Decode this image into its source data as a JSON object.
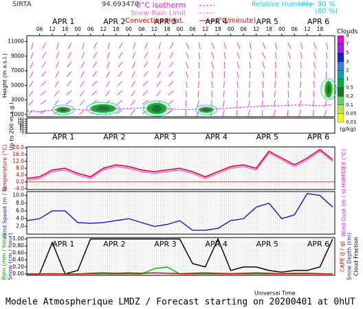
{
  "header": {
    "site": "SIRTA",
    "code": "94.693470",
    "legend": [
      {
        "text": "Snow-Rain Limit",
        "color": "#ff66cc"
      },
      {
        "text": "Convective Heat.",
        "color": "#e00000"
      },
      {
        "text": "(°C/minute)",
        "color": "#e00000"
      },
      {
        "text": "Relative Humidity",
        "color": "#00d8e8"
      },
      {
        "text": "90 %",
        "color": "#00d8e8"
      },
      {
        "text": "(60 %)",
        "color": "#00d8e8"
      }
    ]
  },
  "chart_data": [
    {
      "type": "line",
      "ylabel": "Height (m a.s.l.)",
      "sub_ylabel": "Up to 200 m a.g.l.",
      "xlim": [
        0,
        145
      ],
      "ylim": [
        700,
        11800
      ],
      "yticks": [
        1000,
        3000,
        5000,
        7000,
        9000,
        11000
      ],
      "sub_ylim": [
        0,
        150
      ],
      "sub_yticks": [
        0,
        20,
        40,
        60,
        80,
        100,
        120,
        140
      ],
      "xticks": [
        {
          "value": 12,
          "label": "APR 1"
        },
        {
          "value": 36,
          "label": "APR 2"
        },
        {
          "value": 60,
          "label": "APR 3"
        },
        {
          "value": 84,
          "label": "APR 4"
        },
        {
          "value": 108,
          "label": "APR 5"
        },
        {
          "value": 132,
          "label": "APR 6"
        }
      ],
      "hour_ticks": [
        {
          "value": 6,
          "label": "06"
        },
        {
          "value": 12,
          "label": "12"
        },
        {
          "value": 18,
          "label": "18"
        },
        {
          "value": 24,
          "label": "00"
        },
        {
          "value": 30,
          "label": "06"
        },
        {
          "value": 36,
          "label": "12"
        },
        {
          "value": 42,
          "label": "18"
        },
        {
          "value": 48,
          "label": "00"
        },
        {
          "value": 54,
          "label": "06"
        },
        {
          "value": 60,
          "label": "12"
        },
        {
          "value": 66,
          "label": "18"
        },
        {
          "value": 72,
          "label": "00"
        },
        {
          "value": 78,
          "label": "06"
        },
        {
          "value": 84,
          "label": "12"
        },
        {
          "value": 90,
          "label": "18"
        },
        {
          "value": 96,
          "label": "00"
        },
        {
          "value": 102,
          "label": "06"
        },
        {
          "value": 108,
          "label": "12"
        },
        {
          "value": 114,
          "label": "18"
        },
        {
          "value": 120,
          "label": "00"
        },
        {
          "value": 126,
          "label": "06"
        },
        {
          "value": 132,
          "label": "12"
        },
        {
          "value": 138,
          "label": "18"
        }
      ],
      "x": [
        0,
        6,
        12,
        18,
        24,
        30,
        36,
        42,
        48,
        54,
        60,
        66,
        72,
        78,
        84,
        90,
        96,
        102,
        108,
        114,
        120,
        126,
        132,
        138,
        144
      ],
      "series": [
        {
          "name": "0°C isotherm",
          "color": "#ff00ff",
          "values": [
            1500,
            1400,
            1600,
            1800,
            1700,
            1600,
            1700,
            1800,
            1800,
            1900,
            1900,
            1800,
            1700,
            1700,
            1800,
            1800,
            1900,
            2000,
            2100,
            2200,
            2200,
            2300,
            2300,
            2200,
            2400
          ]
        }
      ],
      "colorbar": {
        "title": "Clouds",
        "unit": "(g/kg)",
        "labels": [
          9,
          7,
          5,
          3,
          2,
          1,
          0.5,
          0.2,
          0.1,
          0.05,
          0.01
        ],
        "colors": [
          "#e000e0",
          "#9a20ff",
          "#2020c0",
          "#3878f0",
          "#00a8a8",
          "#00b040",
          "#207030",
          "#60d060",
          "#b8e840",
          "#f8f800"
        ]
      }
    },
    {
      "type": "line",
      "ylabel": "Temperature (°C)",
      "y2label": "HUMIDEX (°C)",
      "xlim": [
        0,
        145
      ],
      "ylim": [
        -4.5,
        20.5
      ],
      "yticks": [
        {
          "value": -4,
          "label": "-4.0"
        },
        {
          "value": 0,
          "label": "0.0"
        },
        {
          "value": 4,
          "label": "4.0"
        },
        {
          "value": 8,
          "label": "8.0"
        },
        {
          "value": 12,
          "label": "12.0"
        },
        {
          "value": 16,
          "label": "16.0"
        },
        {
          "value": 20,
          "label": "20.0"
        }
      ],
      "xticks": [
        {
          "value": 12,
          "label": "APR 1"
        },
        {
          "value": 36,
          "label": "APR 2"
        },
        {
          "value": 60,
          "label": "APR 3"
        },
        {
          "value": 84,
          "label": "APR 4"
        },
        {
          "value": 108,
          "label": "APR 5"
        },
        {
          "value": 132,
          "label": "APR 6"
        }
      ],
      "x": [
        0,
        6,
        12,
        18,
        24,
        30,
        36,
        42,
        48,
        54,
        60,
        66,
        72,
        78,
        84,
        90,
        96,
        102,
        108,
        114,
        120,
        126,
        132,
        138,
        144
      ],
      "series": [
        {
          "color": "#ff55ff",
          "values": [
            1,
            2,
            6,
            7,
            4,
            2,
            7,
            9,
            8,
            6,
            5,
            6,
            7,
            5,
            2,
            5,
            8,
            9,
            7,
            17,
            13,
            9,
            13,
            18,
            12
          ]
        },
        {
          "color": "#e00000",
          "values": [
            2,
            3,
            7,
            8,
            5,
            3,
            8,
            10,
            9,
            7,
            6,
            7,
            8,
            6,
            3,
            6,
            9,
            10,
            8,
            18,
            14,
            10,
            14,
            19,
            13
          ]
        }
      ]
    },
    {
      "type": "line",
      "ylabel": "Wind Speed (m / s)",
      "y2label": "Wind Gust (m / s)",
      "xlim": [
        0,
        145
      ],
      "ylim": [
        0,
        11
      ],
      "yticks": [
        {
          "value": 2,
          "label": "2.0"
        },
        {
          "value": 4,
          "label": "4.0"
        },
        {
          "value": 6,
          "label": "6.0"
        },
        {
          "value": 8,
          "label": "8.0"
        },
        {
          "value": 10,
          "label": "10.0"
        }
      ],
      "xticks": [],
      "x": [
        0,
        6,
        12,
        18,
        24,
        30,
        36,
        42,
        48,
        54,
        60,
        66,
        72,
        78,
        84,
        90,
        96,
        102,
        108,
        114,
        120,
        126,
        132,
        138,
        144
      ],
      "series": [
        {
          "color": "#2020d0",
          "values": [
            3.5,
            4,
            6,
            6,
            3,
            2.8,
            3,
            3.5,
            4,
            3,
            2,
            2.5,
            3.5,
            1,
            1,
            1.5,
            3.5,
            4,
            7,
            8,
            4,
            5,
            10.5,
            10,
            7
          ]
        }
      ]
    },
    {
      "type": "line",
      "ylabel": [
        {
          "text": "Rain (mm / hour)",
          "color": "#00a000"
        },
        {
          "text": "Snow (cm / hour)",
          "color": "#2020d0"
        }
      ],
      "y2label": [
        {
          "text": "CAPE (J / g)",
          "color": "#e00000"
        },
        {
          "text": "Snow Depth (cm)",
          "color": "#2020d0"
        },
        {
          "text": "Cloud Fraction",
          "color": "#000000"
        }
      ],
      "xlabel": "Universal Time",
      "xlim": [
        0,
        145
      ],
      "ylim": [
        -0.04,
        1.04
      ],
      "yticks": [
        {
          "value": 0,
          "label": "0.00"
        },
        {
          "value": 0.2,
          "label": "0.20"
        },
        {
          "value": 0.4,
          "label": "0.40"
        },
        {
          "value": 0.6,
          "label": "0.60"
        },
        {
          "value": 0.8,
          "label": "0.80"
        },
        {
          "value": 1,
          "label": "1.00"
        }
      ],
      "xticks": [
        {
          "value": 12,
          "label": "APR 1"
        },
        {
          "value": 36,
          "label": "APR 2"
        },
        {
          "value": 60,
          "label": "APR 3"
        },
        {
          "value": 84,
          "label": "APR 4"
        },
        {
          "value": 108,
          "label": "APR 5"
        },
        {
          "value": 132,
          "label": "APR 6"
        }
      ],
      "x": [
        0,
        6,
        12,
        18,
        24,
        30,
        36,
        42,
        48,
        54,
        60,
        66,
        72,
        78,
        84,
        90,
        96,
        102,
        108,
        114,
        120,
        126,
        132,
        138,
        144
      ],
      "series": [
        {
          "color": "#000000",
          "values": [
            0,
            0,
            0.9,
            0,
            0.1,
            1,
            1,
            1,
            1,
            1,
            1,
            1,
            1,
            0.3,
            0.2,
            1,
            0.1,
            0.2,
            0.2,
            0.1,
            0.05,
            0.1,
            0.1,
            0.2,
            1
          ]
        },
        {
          "color": "#00c000",
          "values": [
            0,
            0,
            0,
            0,
            0,
            0,
            0,
            0,
            0,
            0,
            0.15,
            0.2,
            0,
            0,
            0,
            0,
            0,
            0,
            0,
            0,
            0,
            0,
            0,
            0,
            0
          ]
        },
        {
          "color": "#e00000",
          "values": [
            0,
            0,
            0.01,
            0,
            0,
            0.02,
            0.03,
            0.02,
            0.03,
            0.02,
            0.03,
            0.02,
            0.01,
            0.02,
            0.03,
            0.02,
            0.01,
            0.02,
            0.03,
            0.02,
            0.01,
            0.02,
            0.02,
            0.01,
            0
          ]
        }
      ]
    }
  ],
  "footer": {
    "caption": "Modele Atmospherique LMDZ / Forecast starting on 20200401 at 0hUT"
  }
}
